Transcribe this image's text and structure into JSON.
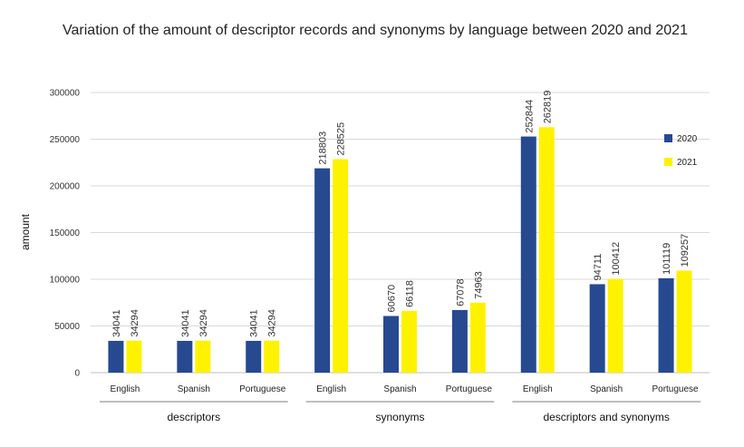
{
  "chart_data": {
    "type": "bar",
    "title": "Variation of the amount of descriptor records and synonyms by language between 2020 and 2021",
    "xlabel": "",
    "ylabel": "amount",
    "ylim": [
      0,
      300000
    ],
    "yticks": [
      0,
      50000,
      100000,
      150000,
      200000,
      250000,
      300000
    ],
    "grid": true,
    "legend_position": "right",
    "groups": [
      {
        "name": "descriptors",
        "categories": [
          "English",
          "Spanish",
          "Portuguese"
        ]
      },
      {
        "name": "synonyms",
        "categories": [
          "English",
          "Spanish",
          "Portuguese"
        ]
      },
      {
        "name": "descriptors and synonyms",
        "categories": [
          "English",
          "Spanish",
          "Portuguese"
        ]
      }
    ],
    "series": [
      {
        "name": "2020",
        "color": "#264990",
        "values": [
          34041,
          34041,
          34041,
          218803,
          60670,
          67078,
          252844,
          94711,
          101119
        ]
      },
      {
        "name": "2021",
        "color": "#FFF200",
        "values": [
          34294,
          34294,
          34294,
          228525,
          66118,
          74963,
          262819,
          100412,
          109257
        ]
      }
    ]
  }
}
